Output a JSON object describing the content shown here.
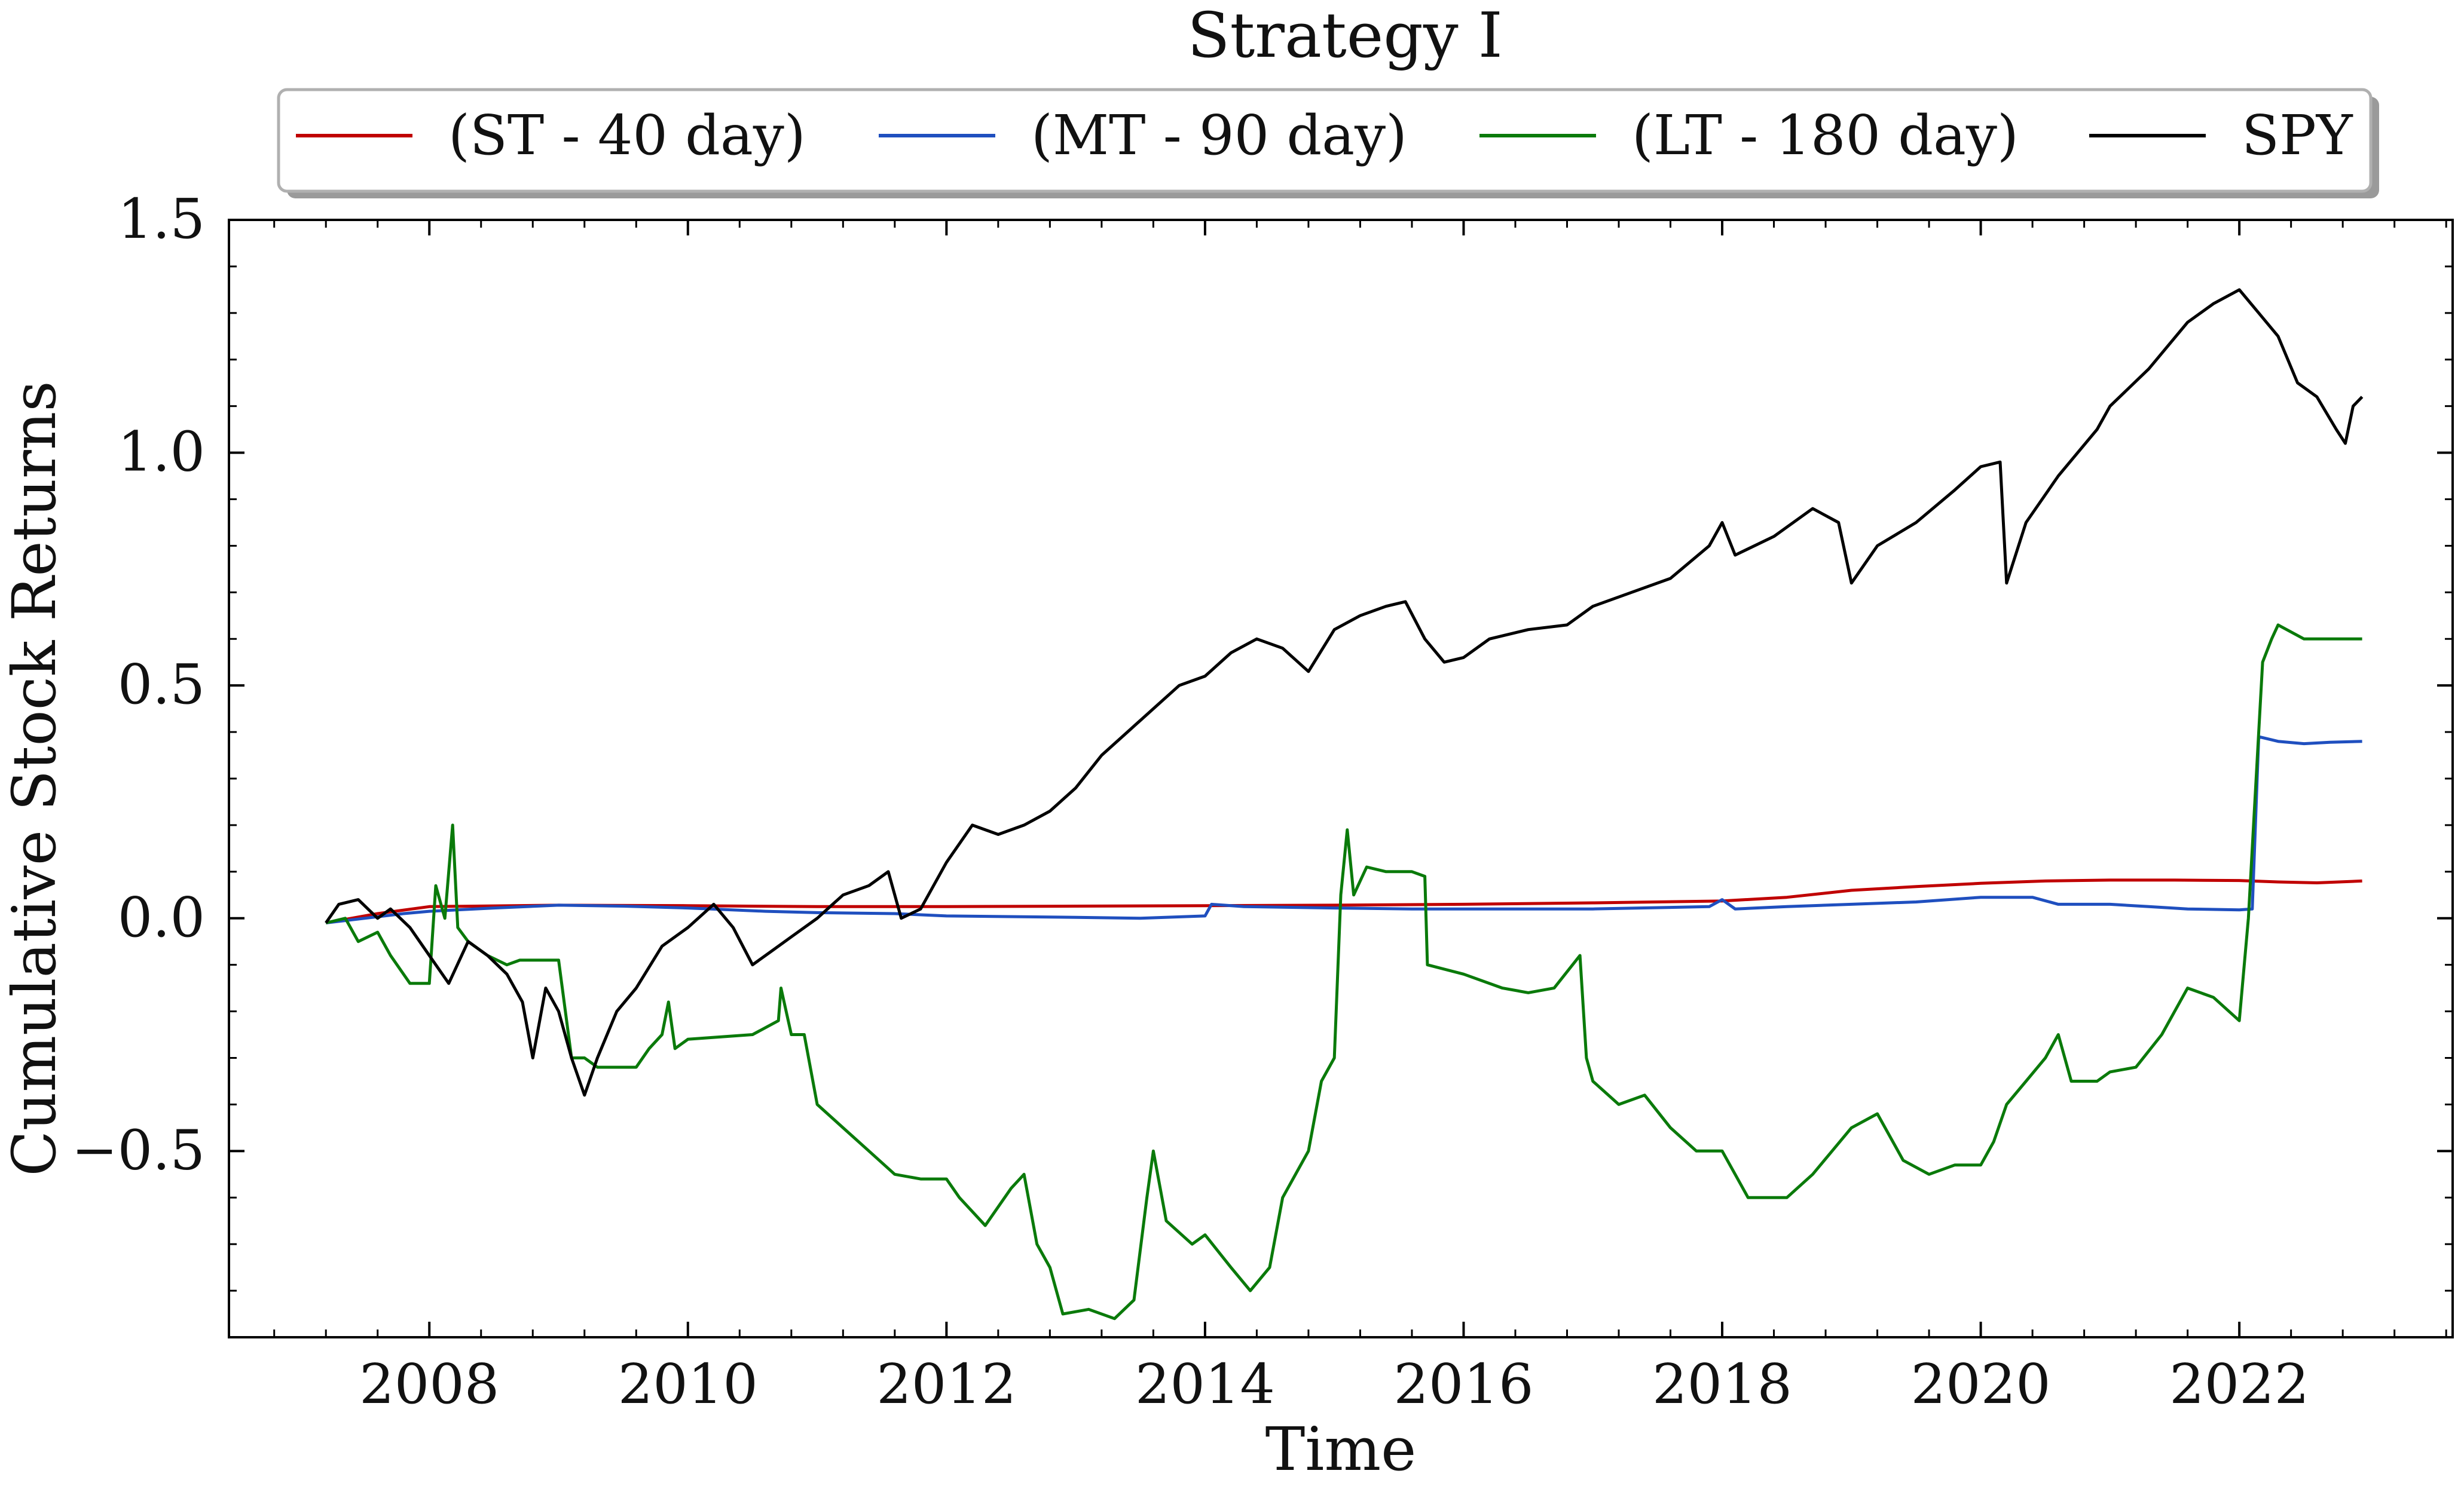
{
  "chart_data": {
    "type": "line",
    "title": "Strategy I",
    "xlabel": "Time",
    "ylabel": "Cumulative Stock Returns",
    "xlim": [
      2006.45,
      2023.65
    ],
    "ylim": [
      -0.9,
      1.5
    ],
    "x_ticks": [
      2008,
      2010,
      2012,
      2014,
      2016,
      2018,
      2020,
      2022
    ],
    "x_tick_labels": [
      "2008",
      "2010",
      "2012",
      "2014",
      "2016",
      "2018",
      "2020",
      "2022"
    ],
    "y_ticks": [
      -0.5,
      0.0,
      0.5,
      1.0,
      1.5
    ],
    "y_tick_labels": [
      "−0.5",
      "0.0",
      "0.5",
      "1.0",
      "1.5"
    ],
    "grid": false,
    "legend_position": "top-center",
    "series": [
      {
        "name": "(ST - 40 day)",
        "color": "#c00000",
        "points": [
          [
            2007.2,
            -0.01
          ],
          [
            2007.6,
            0.01
          ],
          [
            2008.0,
            0.025
          ],
          [
            2009.0,
            0.028
          ],
          [
            2010.0,
            0.027
          ],
          [
            2011.0,
            0.025
          ],
          [
            2012.0,
            0.025
          ],
          [
            2013.0,
            0.026
          ],
          [
            2014.0,
            0.027
          ],
          [
            2015.0,
            0.028
          ],
          [
            2016.0,
            0.03
          ],
          [
            2017.0,
            0.033
          ],
          [
            2018.0,
            0.037
          ],
          [
            2018.5,
            0.045
          ],
          [
            2019.0,
            0.06
          ],
          [
            2019.5,
            0.068
          ],
          [
            2020.0,
            0.075
          ],
          [
            2020.5,
            0.08
          ],
          [
            2021.0,
            0.082
          ],
          [
            2021.5,
            0.082
          ],
          [
            2022.0,
            0.081
          ],
          [
            2022.3,
            0.078
          ],
          [
            2022.6,
            0.076
          ],
          [
            2022.95,
            0.08
          ]
        ]
      },
      {
        "name": "(MT - 90 day)",
        "color": "#1f4fbf",
        "points": [
          [
            2007.2,
            -0.01
          ],
          [
            2007.5,
            0.0
          ],
          [
            2007.8,
            0.01
          ],
          [
            2008.0,
            0.015
          ],
          [
            2008.5,
            0.022
          ],
          [
            2009.0,
            0.028
          ],
          [
            2009.5,
            0.026
          ],
          [
            2010.0,
            0.022
          ],
          [
            2010.6,
            0.015
          ],
          [
            2011.0,
            0.012
          ],
          [
            2011.6,
            0.01
          ],
          [
            2012.0,
            0.005
          ],
          [
            2013.0,
            0.002
          ],
          [
            2013.5,
            0.0
          ],
          [
            2014.0,
            0.005
          ],
          [
            2014.05,
            0.03
          ],
          [
            2014.3,
            0.025
          ],
          [
            2015.0,
            0.022
          ],
          [
            2015.6,
            0.02
          ],
          [
            2016.0,
            0.02
          ],
          [
            2017.0,
            0.02
          ],
          [
            2017.9,
            0.025
          ],
          [
            2018.0,
            0.04
          ],
          [
            2018.1,
            0.02
          ],
          [
            2018.5,
            0.025
          ],
          [
            2019.0,
            0.03
          ],
          [
            2019.5,
            0.035
          ],
          [
            2020.0,
            0.045
          ],
          [
            2020.4,
            0.045
          ],
          [
            2020.6,
            0.03
          ],
          [
            2021.0,
            0.03
          ],
          [
            2021.3,
            0.025
          ],
          [
            2021.6,
            0.02
          ],
          [
            2022.0,
            0.018
          ],
          [
            2022.1,
            0.02
          ],
          [
            2022.15,
            0.39
          ],
          [
            2022.3,
            0.38
          ],
          [
            2022.5,
            0.375
          ],
          [
            2022.7,
            0.378
          ],
          [
            2022.95,
            0.38
          ]
        ]
      },
      {
        "name": "(LT - 180 day)",
        "color": "#0a7a0a",
        "points": [
          [
            2007.2,
            -0.01
          ],
          [
            2007.35,
            0.0
          ],
          [
            2007.45,
            -0.05
          ],
          [
            2007.6,
            -0.03
          ],
          [
            2007.7,
            -0.08
          ],
          [
            2007.85,
            -0.14
          ],
          [
            2008.0,
            -0.14
          ],
          [
            2008.05,
            0.07
          ],
          [
            2008.12,
            0.0
          ],
          [
            2008.18,
            0.2
          ],
          [
            2008.22,
            -0.02
          ],
          [
            2008.3,
            -0.05
          ],
          [
            2008.45,
            -0.08
          ],
          [
            2008.6,
            -0.1
          ],
          [
            2008.7,
            -0.09
          ],
          [
            2009.0,
            -0.09
          ],
          [
            2009.1,
            -0.3
          ],
          [
            2009.2,
            -0.3
          ],
          [
            2009.3,
            -0.32
          ],
          [
            2009.6,
            -0.32
          ],
          [
            2009.7,
            -0.28
          ],
          [
            2009.8,
            -0.25
          ],
          [
            2009.85,
            -0.18
          ],
          [
            2009.9,
            -0.28
          ],
          [
            2010.0,
            -0.26
          ],
          [
            2010.5,
            -0.25
          ],
          [
            2010.7,
            -0.22
          ],
          [
            2010.72,
            -0.15
          ],
          [
            2010.8,
            -0.25
          ],
          [
            2010.9,
            -0.25
          ],
          [
            2011.0,
            -0.4
          ],
          [
            2011.2,
            -0.45
          ],
          [
            2011.4,
            -0.5
          ],
          [
            2011.6,
            -0.55
          ],
          [
            2011.8,
            -0.56
          ],
          [
            2012.0,
            -0.56
          ],
          [
            2012.1,
            -0.6
          ],
          [
            2012.3,
            -0.66
          ],
          [
            2012.5,
            -0.58
          ],
          [
            2012.6,
            -0.55
          ],
          [
            2012.7,
            -0.7
          ],
          [
            2012.8,
            -0.75
          ],
          [
            2012.9,
            -0.85
          ],
          [
            2013.1,
            -0.84
          ],
          [
            2013.3,
            -0.86
          ],
          [
            2013.45,
            -0.82
          ],
          [
            2013.55,
            -0.6
          ],
          [
            2013.6,
            -0.5
          ],
          [
            2013.7,
            -0.65
          ],
          [
            2013.9,
            -0.7
          ],
          [
            2014.0,
            -0.68
          ],
          [
            2014.2,
            -0.75
          ],
          [
            2014.35,
            -0.8
          ],
          [
            2014.5,
            -0.75
          ],
          [
            2014.6,
            -0.6
          ],
          [
            2014.8,
            -0.5
          ],
          [
            2014.9,
            -0.35
          ],
          [
            2015.0,
            -0.3
          ],
          [
            2015.05,
            0.05
          ],
          [
            2015.1,
            0.19
          ],
          [
            2015.15,
            0.05
          ],
          [
            2015.25,
            0.11
          ],
          [
            2015.4,
            0.1
          ],
          [
            2015.6,
            0.1
          ],
          [
            2015.7,
            0.09
          ],
          [
            2015.72,
            -0.1
          ],
          [
            2016.0,
            -0.12
          ],
          [
            2016.3,
            -0.15
          ],
          [
            2016.5,
            -0.16
          ],
          [
            2016.7,
            -0.15
          ],
          [
            2016.9,
            -0.08
          ],
          [
            2016.95,
            -0.3
          ],
          [
            2017.0,
            -0.35
          ],
          [
            2017.2,
            -0.4
          ],
          [
            2017.4,
            -0.38
          ],
          [
            2017.6,
            -0.45
          ],
          [
            2017.8,
            -0.5
          ],
          [
            2018.0,
            -0.5
          ],
          [
            2018.1,
            -0.55
          ],
          [
            2018.2,
            -0.6
          ],
          [
            2018.5,
            -0.6
          ],
          [
            2018.7,
            -0.55
          ],
          [
            2018.85,
            -0.5
          ],
          [
            2019.0,
            -0.45
          ],
          [
            2019.2,
            -0.42
          ],
          [
            2019.4,
            -0.52
          ],
          [
            2019.6,
            -0.55
          ],
          [
            2019.8,
            -0.53
          ],
          [
            2020.0,
            -0.53
          ],
          [
            2020.1,
            -0.48
          ],
          [
            2020.2,
            -0.4
          ],
          [
            2020.35,
            -0.35
          ],
          [
            2020.5,
            -0.3
          ],
          [
            2020.6,
            -0.25
          ],
          [
            2020.7,
            -0.35
          ],
          [
            2020.9,
            -0.35
          ],
          [
            2021.0,
            -0.33
          ],
          [
            2021.2,
            -0.32
          ],
          [
            2021.4,
            -0.25
          ],
          [
            2021.6,
            -0.15
          ],
          [
            2021.8,
            -0.17
          ],
          [
            2022.0,
            -0.22
          ],
          [
            2022.07,
            0.0
          ],
          [
            2022.12,
            0.25
          ],
          [
            2022.18,
            0.55
          ],
          [
            2022.25,
            0.6
          ],
          [
            2022.3,
            0.63
          ],
          [
            2022.5,
            0.6
          ],
          [
            2022.7,
            0.6
          ],
          [
            2022.95,
            0.6
          ]
        ]
      },
      {
        "name": "SPY",
        "color": "#000000",
        "points": [
          [
            2007.2,
            -0.01
          ],
          [
            2007.3,
            0.03
          ],
          [
            2007.45,
            0.04
          ],
          [
            2007.6,
            0.0
          ],
          [
            2007.7,
            0.02
          ],
          [
            2007.85,
            -0.02
          ],
          [
            2008.0,
            -0.08
          ],
          [
            2008.15,
            -0.14
          ],
          [
            2008.3,
            -0.05
          ],
          [
            2008.45,
            -0.08
          ],
          [
            2008.6,
            -0.12
          ],
          [
            2008.72,
            -0.18
          ],
          [
            2008.8,
            -0.3
          ],
          [
            2008.9,
            -0.15
          ],
          [
            2009.0,
            -0.2
          ],
          [
            2009.1,
            -0.3
          ],
          [
            2009.2,
            -0.38
          ],
          [
            2009.3,
            -0.3
          ],
          [
            2009.45,
            -0.2
          ],
          [
            2009.6,
            -0.15
          ],
          [
            2009.8,
            -0.06
          ],
          [
            2010.0,
            -0.02
          ],
          [
            2010.2,
            0.03
          ],
          [
            2010.35,
            -0.02
          ],
          [
            2010.5,
            -0.1
          ],
          [
            2010.65,
            -0.07
          ],
          [
            2010.8,
            -0.04
          ],
          [
            2011.0,
            0.0
          ],
          [
            2011.2,
            0.05
          ],
          [
            2011.4,
            0.07
          ],
          [
            2011.55,
            0.1
          ],
          [
            2011.65,
            0.0
          ],
          [
            2011.8,
            0.02
          ],
          [
            2012.0,
            0.12
          ],
          [
            2012.2,
            0.2
          ],
          [
            2012.4,
            0.18
          ],
          [
            2012.6,
            0.2
          ],
          [
            2012.8,
            0.23
          ],
          [
            2013.0,
            0.28
          ],
          [
            2013.2,
            0.35
          ],
          [
            2013.4,
            0.4
          ],
          [
            2013.6,
            0.45
          ],
          [
            2013.8,
            0.5
          ],
          [
            2014.0,
            0.52
          ],
          [
            2014.2,
            0.57
          ],
          [
            2014.4,
            0.6
          ],
          [
            2014.6,
            0.58
          ],
          [
            2014.8,
            0.53
          ],
          [
            2015.0,
            0.62
          ],
          [
            2015.2,
            0.65
          ],
          [
            2015.4,
            0.67
          ],
          [
            2015.55,
            0.68
          ],
          [
            2015.7,
            0.6
          ],
          [
            2015.85,
            0.55
          ],
          [
            2016.0,
            0.56
          ],
          [
            2016.2,
            0.6
          ],
          [
            2016.5,
            0.62
          ],
          [
            2016.8,
            0.63
          ],
          [
            2017.0,
            0.67
          ],
          [
            2017.3,
            0.7
          ],
          [
            2017.6,
            0.73
          ],
          [
            2017.9,
            0.8
          ],
          [
            2018.0,
            0.85
          ],
          [
            2018.1,
            0.78
          ],
          [
            2018.4,
            0.82
          ],
          [
            2018.7,
            0.88
          ],
          [
            2018.9,
            0.85
          ],
          [
            2019.0,
            0.72
          ],
          [
            2019.2,
            0.8
          ],
          [
            2019.5,
            0.85
          ],
          [
            2019.8,
            0.92
          ],
          [
            2020.0,
            0.97
          ],
          [
            2020.15,
            0.98
          ],
          [
            2020.2,
            0.72
          ],
          [
            2020.35,
            0.85
          ],
          [
            2020.6,
            0.95
          ],
          [
            2020.9,
            1.05
          ],
          [
            2021.0,
            1.1
          ],
          [
            2021.3,
            1.18
          ],
          [
            2021.6,
            1.28
          ],
          [
            2021.8,
            1.32
          ],
          [
            2022.0,
            1.35
          ],
          [
            2022.15,
            1.3
          ],
          [
            2022.3,
            1.25
          ],
          [
            2022.45,
            1.15
          ],
          [
            2022.6,
            1.12
          ],
          [
            2022.75,
            1.05
          ],
          [
            2022.82,
            1.02
          ],
          [
            2022.88,
            1.1
          ],
          [
            2022.95,
            1.12
          ]
        ]
      }
    ]
  }
}
